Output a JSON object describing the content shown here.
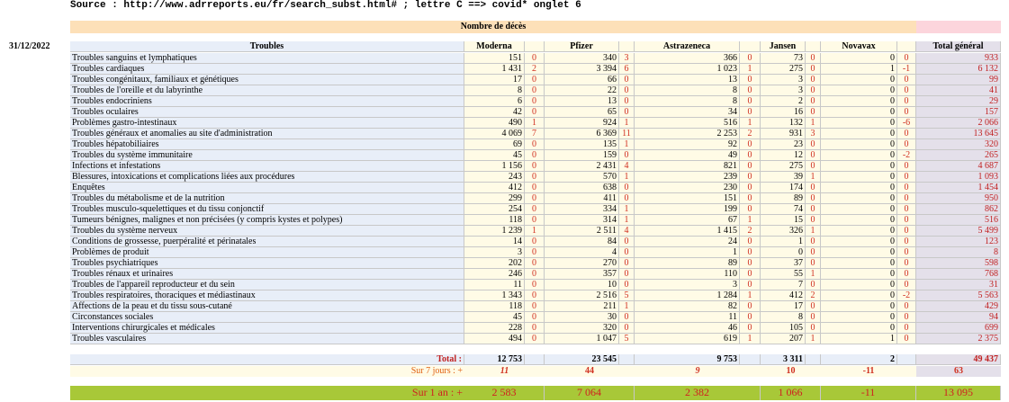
{
  "source": "Source : http://www.adrreports.eu/fr/search_subst.html# ; lettre C ==> covid* onglet 6",
  "date": "31/12/2022",
  "table_title": "Nombre de décès",
  "header": {
    "label": "Troubles",
    "vaccines": [
      "Moderna",
      "Pfizer",
      "Astrazeneca",
      "Jansen",
      "Novavax"
    ],
    "total": "Total général"
  },
  "rows": [
    [
      "Troubles sanguins et lymphatiques",
      151,
      0,
      340,
      3,
      366,
      0,
      73,
      0,
      0,
      0,
      933
    ],
    [
      "Troubles cardiaques",
      "1 431",
      2,
      "3 394",
      6,
      "1 023",
      1,
      275,
      0,
      1,
      -1,
      "6 132"
    ],
    [
      "Troubles congénitaux, familiaux et génétiques",
      17,
      0,
      66,
      0,
      13,
      0,
      3,
      0,
      0,
      0,
      99
    ],
    [
      "Troubles de l'oreille et du labyrinthe",
      8,
      0,
      22,
      0,
      8,
      0,
      3,
      0,
      0,
      0,
      41
    ],
    [
      "Troubles endocriniens",
      6,
      0,
      13,
      0,
      8,
      0,
      2,
      0,
      0,
      0,
      29
    ],
    [
      "Troubles oculaires",
      42,
      0,
      65,
      0,
      34,
      0,
      16,
      0,
      0,
      0,
      157
    ],
    [
      "Problèmes gastro-intestinaux",
      490,
      1,
      924,
      1,
      516,
      1,
      132,
      1,
      0,
      -6,
      "2 066"
    ],
    [
      "Troubles généraux et anomalies au site d'administration",
      "4 069",
      7,
      "6 369",
      11,
      "2 253",
      2,
      931,
      3,
      0,
      0,
      "13 645"
    ],
    [
      "Troubles hépatobiliaires",
      69,
      0,
      135,
      1,
      92,
      0,
      23,
      0,
      0,
      0,
      320
    ],
    [
      "Troubles du système immunitaire",
      45,
      0,
      159,
      0,
      49,
      0,
      12,
      0,
      0,
      -2,
      265
    ],
    [
      "Infections et infestations",
      "1 156",
      0,
      "2 431",
      4,
      821,
      0,
      275,
      0,
      0,
      0,
      "4 687"
    ],
    [
      "Blessures, intoxications et complications liées aux procédures",
      243,
      0,
      570,
      1,
      239,
      0,
      39,
      1,
      0,
      0,
      "1 093"
    ],
    [
      "Enquêtes",
      412,
      0,
      638,
      0,
      230,
      0,
      174,
      0,
      0,
      0,
      "1 454"
    ],
    [
      "Troubles du métabolisme et de la nutrition",
      299,
      0,
      411,
      0,
      151,
      0,
      89,
      0,
      0,
      0,
      950
    ],
    [
      "Troubles musculo-squelettiques et du tissu conjonctif",
      254,
      0,
      334,
      1,
      199,
      0,
      74,
      0,
      0,
      0,
      862
    ],
    [
      "Tumeurs bénignes, malignes et non précisées (y compris kystes et polypes)",
      118,
      0,
      314,
      1,
      67,
      1,
      15,
      0,
      0,
      0,
      516
    ],
    [
      "Troubles du système nerveux",
      "1 239",
      1,
      "2 511",
      4,
      "1 415",
      2,
      326,
      1,
      0,
      0,
      "5 499"
    ],
    [
      "Conditions de grossesse, puerpéralité et périnatales",
      14,
      0,
      84,
      0,
      24,
      0,
      1,
      0,
      0,
      0,
      123
    ],
    [
      "Problèmes de produit",
      3,
      0,
      4,
      0,
      1,
      0,
      0,
      0,
      0,
      0,
      8
    ],
    [
      "Troubles psychiatriques",
      202,
      0,
      270,
      0,
      89,
      0,
      37,
      0,
      0,
      0,
      598
    ],
    [
      "Troubles rénaux et urinaires",
      246,
      0,
      357,
      0,
      110,
      0,
      55,
      1,
      0,
      0,
      768
    ],
    [
      "Troubles de l'appareil reproducteur et du sein",
      11,
      0,
      10,
      0,
      3,
      0,
      7,
      0,
      0,
      0,
      31
    ],
    [
      "Troubles respiratoires, thoraciques et médiastinaux",
      "1 343",
      0,
      "2 516",
      5,
      "1 284",
      1,
      412,
      2,
      0,
      -2,
      "5 563"
    ],
    [
      "Affections de la peau et du tissu sous-cutané",
      118,
      0,
      211,
      1,
      82,
      0,
      17,
      0,
      0,
      0,
      429
    ],
    [
      "Circonstances sociales",
      45,
      0,
      30,
      0,
      11,
      0,
      8,
      0,
      0,
      0,
      94
    ],
    [
      "Interventions chirurgicales et médicales",
      228,
      0,
      320,
      0,
      46,
      0,
      105,
      0,
      0,
      0,
      699
    ],
    [
      "Troubles vasculaires",
      494,
      0,
      "1 047",
      5,
      619,
      1,
      207,
      1,
      1,
      0,
      "2 375"
    ]
  ],
  "total": {
    "label": "Total :",
    "values": [
      "12 753",
      "23 545",
      "9 753",
      "3 311",
      2,
      "49 437"
    ]
  },
  "week": {
    "label": "Sur 7 jours : +",
    "values": [
      11,
      44,
      9,
      10,
      -11,
      63
    ]
  },
  "year": {
    "label": "Sur 1 an : +",
    "values": [
      "2 583",
      "7 064",
      "2 382",
      "1 066",
      -11,
      "13 095"
    ]
  }
}
